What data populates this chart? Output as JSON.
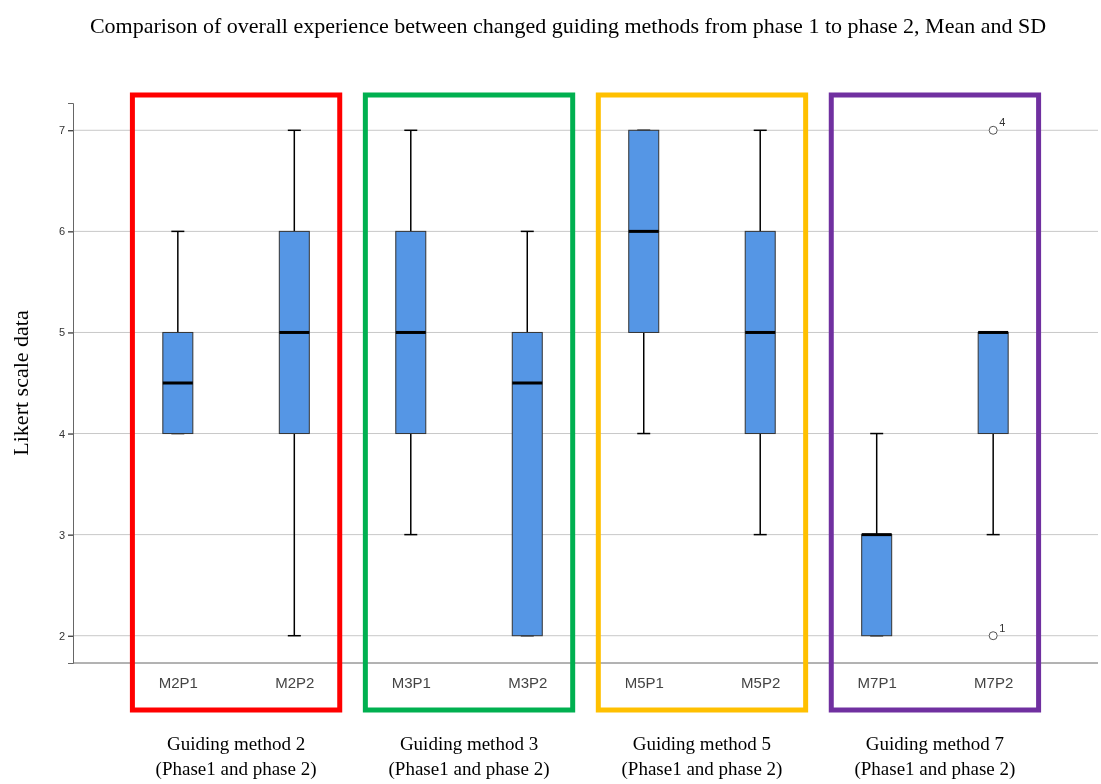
{
  "chart_data": {
    "type": "box",
    "title": "Comparison of overall experience between changed guiding methods from phase 1 to phase 2, Mean and SD",
    "ylabel": "Likert scale data",
    "categories": [
      "M2P1",
      "M2P2",
      "M3P1",
      "M3P2",
      "M5P1",
      "M5P2",
      "M7P1",
      "M7P2"
    ],
    "series": [
      {
        "color": "#5596e5",
        "boxes": [
          {
            "low": 4,
            "q1": 4,
            "median": 4.5,
            "q3": 5,
            "high": 6
          },
          {
            "low": 2,
            "q1": 4,
            "median": 5,
            "q3": 6,
            "high": 7
          },
          {
            "low": 3,
            "q1": 4,
            "median": 5,
            "q3": 6,
            "high": 7
          },
          {
            "low": 2,
            "q1": 2,
            "median": 4.5,
            "q3": 5,
            "high": 6
          },
          {
            "low": 4,
            "q1": 5,
            "median": 6,
            "q3": 7,
            "high": 7
          },
          {
            "low": 3,
            "q1": 4,
            "median": 5,
            "q3": 6,
            "high": 7
          },
          {
            "low": 2,
            "q1": 2,
            "median": 3,
            "q3": 3,
            "high": 4
          },
          {
            "low": 3,
            "q1": 4,
            "median": 5,
            "q3": 5,
            "high": 5,
            "outliers": [
              7,
              2
            ]
          }
        ]
      }
    ],
    "ylim": [
      1.73,
      7.27
    ],
    "yticks": [
      2,
      3,
      4,
      5,
      6,
      7
    ],
    "grid": "y",
    "annotations": [
      "Guiding method 2\n(Phase1 and phase 2)",
      "Guiding method 3\n(Phase1 and phase 2)",
      "Guiding method 5\n(Phase1 and phase 2)",
      "Guiding method 7\n(Phase1 and phase 2)",
      "4",
      "1"
    ]
  }
}
